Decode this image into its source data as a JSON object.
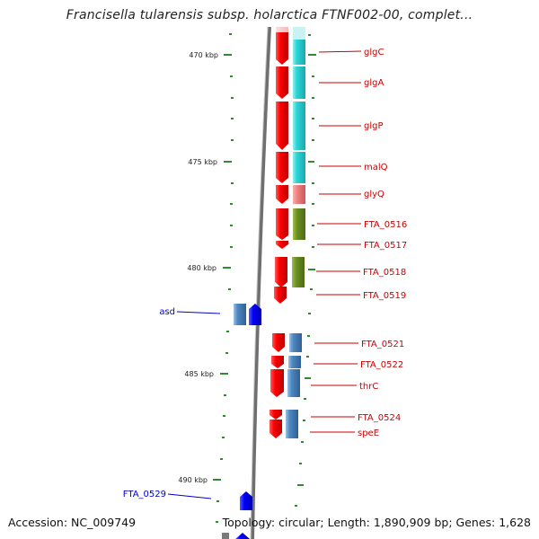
{
  "title": "Francisella tularensis subsp. holarctica FTNF002-00, complet...",
  "accession": "Accession: NC_009749",
  "summary": "Topology: circular; Length: 1,890,909 bp; Genes: 1,628",
  "colors": {
    "backbone": "#7a7a7a",
    "ticks": "#2e8b2e",
    "cds_forward_arrow": "#ff0000",
    "cds_reverse_arrow": "#0000ff",
    "label_right": "#cc0000",
    "label_left": "#0000cc",
    "cog_carbohydrate": "#2ed6d6",
    "cog_amino_acid": "#4f89c2",
    "cog_energy": "#6b8e23",
    "cog_translation": "#f08080"
  },
  "ruler": {
    "unit": "kbp",
    "labels": [
      "470 kbp",
      "475 kbp",
      "480 kbp",
      "485 kbp",
      "490 kbp"
    ]
  },
  "genes": [
    {
      "name": "glgC",
      "strand": "+",
      "cog_color": "#2ed6d6"
    },
    {
      "name": "glgA",
      "strand": "+",
      "cog_color": "#2ed6d6"
    },
    {
      "name": "glgP",
      "strand": "+",
      "cog_color": "#2ed6d6"
    },
    {
      "name": "malQ",
      "strand": "+",
      "cog_color": "#2ed6d6"
    },
    {
      "name": "glyQ",
      "strand": "+",
      "cog_color": "#f08080"
    },
    {
      "name": "FTA_0516",
      "strand": "+",
      "cog_color": "#6b8e23"
    },
    {
      "name": "FTA_0517",
      "strand": "+",
      "cog_color": ""
    },
    {
      "name": "FTA_0518",
      "strand": "+",
      "cog_color": "#6b8e23"
    },
    {
      "name": "FTA_0519",
      "strand": "+",
      "cog_color": ""
    },
    {
      "name": "asd",
      "strand": "-",
      "cog_color": "#4f89c2"
    },
    {
      "name": "FTA_0521",
      "strand": "+",
      "cog_color": "#4f89c2"
    },
    {
      "name": "FTA_0522",
      "strand": "+",
      "cog_color": "#4f89c2"
    },
    {
      "name": "thrC",
      "strand": "+",
      "cog_color": "#4f89c2"
    },
    {
      "name": "FTA_0524",
      "strand": "+",
      "cog_color": "#4f89c2"
    },
    {
      "name": "speE",
      "strand": "+",
      "cog_color": "#4f89c2"
    },
    {
      "name": "FTA_0529",
      "strand": "-",
      "cog_color": ""
    }
  ]
}
